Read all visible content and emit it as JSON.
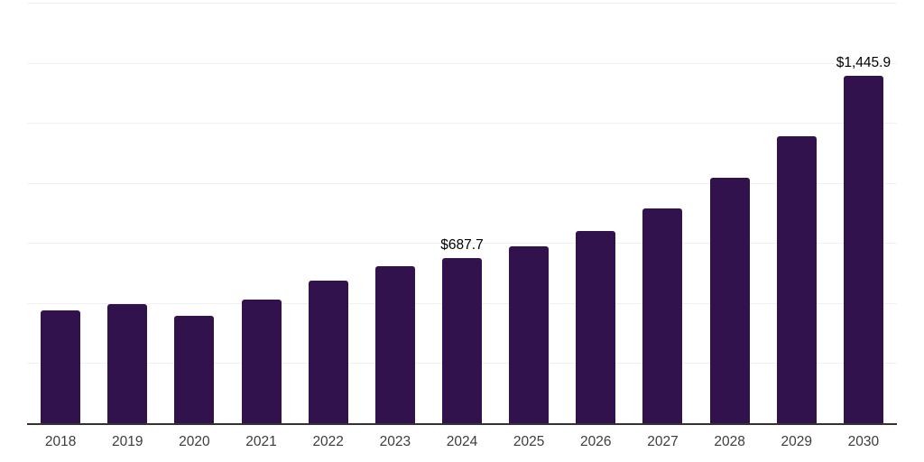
{
  "chart_data": {
    "type": "bar",
    "title": "",
    "xlabel": "",
    "ylabel": "",
    "categories": [
      "2018",
      "2019",
      "2020",
      "2021",
      "2022",
      "2023",
      "2024",
      "2025",
      "2026",
      "2027",
      "2028",
      "2029",
      "2030"
    ],
    "values": [
      468,
      495,
      447,
      515,
      592,
      653,
      687.7,
      736,
      800,
      895,
      1021,
      1194,
      1445.9
    ],
    "data_labels": {
      "2024": "$687.7",
      "2030": "$1,445.9"
    },
    "ylim": [
      0,
      1750
    ],
    "gridline_values": [
      250,
      500,
      750,
      1000,
      1250,
      1500,
      1750
    ],
    "grid": "horizontal-only",
    "legend": "none",
    "y_axis_ticks_visible": false,
    "colors": {
      "bar": "#32124d",
      "gridline": "#f0f0f0",
      "axis": "#333333",
      "tick_label": "#3d3d3d",
      "data_label": "#000000",
      "background": "#ffffff"
    }
  }
}
